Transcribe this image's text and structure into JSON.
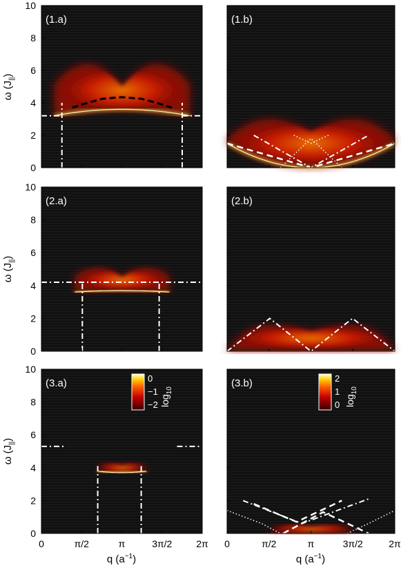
{
  "chart_data": {
    "type": "heatmap",
    "shared_axes": {
      "xlabel": "q (a",
      "xlabel_sup": "−1",
      "xlabel_close": ")",
      "ylabel": "ω (J",
      "ylabel_sub": "||",
      "ylabel_close": ")",
      "xlim": [
        0,
        6.2832
      ],
      "ylim": [
        0,
        10
      ],
      "x_ticks": [
        0,
        1.5708,
        3.1416,
        4.7124,
        6.2832
      ],
      "x_tick_labels": [
        "0",
        "π/2",
        "π",
        "3π/2",
        "2π"
      ],
      "y_ticks": [
        0,
        2,
        4,
        6,
        8,
        10
      ],
      "y_tick_labels": [
        "0",
        "2",
        "4",
        "6",
        "8",
        "10"
      ]
    },
    "panels": [
      {
        "label": "(1.a)",
        "continuum": {
          "q_min": 0.5,
          "q_max": 5.8,
          "edge_low": 3.2,
          "center_low": 3.6,
          "upper_center": 5.0,
          "upper_mid": 6.4,
          "upper_edge": 5.2
        },
        "overlays": [
          {
            "style": "dashed-black",
            "x": [
              1.2,
              1.8,
              2.4,
              3.1416,
              3.9,
              4.5,
              5.1
            ],
            "y": [
              3.7,
              4.0,
              4.25,
              4.35,
              4.25,
              4.0,
              3.7
            ]
          },
          {
            "style": "dashdot-white",
            "x": [
              0,
              0.8
            ],
            "y": [
              3.2,
              3.2
            ]
          },
          {
            "style": "dashdot-white",
            "x": [
              5.5,
              6.2832
            ],
            "y": [
              3.2,
              3.2
            ]
          },
          {
            "style": "dashdot-white",
            "x": [
              0.8,
              0.8
            ],
            "y": [
              0,
              4.0
            ]
          },
          {
            "style": "dashdot-white",
            "x": [
              5.5,
              5.5
            ],
            "y": [
              0,
              4.0
            ]
          }
        ]
      },
      {
        "label": "(1.b)",
        "continuum": {
          "q_min": 0,
          "q_max": 6.2832,
          "edge_low": 1.5,
          "center_low": 0,
          "upper_center": 2.2,
          "upper_mid": 3.0,
          "upper_edge": 1.8
        },
        "overlays": [
          {
            "style": "dashed-white",
            "x": [
              0,
              3.1416,
              6.2832
            ],
            "y": [
              1.5,
              0,
              1.5
            ]
          },
          {
            "style": "dashdot-white",
            "x": [
              1.0,
              3.1416,
              5.3
            ],
            "y": [
              2.0,
              0,
              2.0
            ]
          },
          {
            "style": "dotted-white",
            "x": [
              2.0,
              3.1416,
              4.3
            ],
            "y": [
              0,
              1.8,
              0
            ]
          },
          {
            "style": "dotted-white",
            "x": [
              2.5,
              3.1416,
              3.8
            ],
            "y": [
              2.0,
              1.5,
              2.0
            ]
          }
        ]
      },
      {
        "label": "(2.a)",
        "continuum": {
          "q_min": 1.3,
          "q_max": 5.0,
          "edge_low": 3.6,
          "center_low": 3.7,
          "upper_center": 4.5,
          "upper_mid": 5.1,
          "upper_edge": 4.6
        },
        "overlays": [
          {
            "style": "dashdot-white",
            "x": [
              0,
              6.2832
            ],
            "y": [
              4.2,
              4.2
            ]
          },
          {
            "style": "dashdot-white",
            "x": [
              1.6,
              1.6
            ],
            "y": [
              0,
              4.2
            ]
          },
          {
            "style": "dashdot-white",
            "x": [
              4.6,
              4.6
            ],
            "y": [
              0,
              4.2
            ]
          }
        ]
      },
      {
        "label": "(2.b)",
        "continuum": {
          "q_min": 0,
          "q_max": 6.2832,
          "edge_low": 0,
          "center_low": 0,
          "upper_center": 1.2,
          "upper_mid": 1.6,
          "upper_edge": 0.1
        },
        "overlays": [
          {
            "style": "dashdot-white",
            "x": [
              0,
              1.6,
              3.1416,
              4.7,
              6.2832
            ],
            "y": [
              0,
              2.0,
              0,
              2.0,
              0
            ]
          }
        ]
      },
      {
        "label": "(3.a)",
        "colorbar": {
          "scale_label": "log",
          "scale_sub": "10",
          "tick_labels": [
            "0",
            "−1",
            "−2"
          ],
          "tick_values": [
            0,
            -1,
            -2
          ]
        },
        "continuum": {
          "q_min": 2.2,
          "q_max": 4.1,
          "edge_low": 3.8,
          "center_low": 3.7,
          "upper_center": 4.1,
          "upper_mid": 4.3,
          "upper_edge": 4.0
        },
        "overlays": [
          {
            "style": "dashdot-white",
            "x": [
              0,
              0.9
            ],
            "y": [
              5.3,
              5.3
            ]
          },
          {
            "style": "dashdot-white",
            "x": [
              5.3,
              6.2832
            ],
            "y": [
              5.3,
              5.3
            ]
          },
          {
            "style": "dashdot-white",
            "x": [
              2.2,
              2.2
            ],
            "y": [
              0,
              4.1
            ]
          },
          {
            "style": "dashdot-white",
            "x": [
              3.9,
              3.9
            ],
            "y": [
              0,
              4.1
            ]
          }
        ]
      },
      {
        "label": "(3.b)",
        "colorbar": {
          "scale_label": "log",
          "scale_sub": "10",
          "tick_labels": [
            "2",
            "1",
            "0"
          ],
          "tick_values": [
            2,
            1,
            0
          ]
        },
        "continuum": {
          "q_min": 1.5,
          "q_max": 4.8,
          "edge_low": 0,
          "center_low": 0,
          "upper_center": 0.4,
          "upper_mid": 0.55,
          "upper_edge": 0
        },
        "overlays": [
          {
            "style": "dashed-white",
            "x": [
              1.0,
              2.6,
              4.3
            ],
            "y": [
              1.8,
              0.7,
              2.0
            ]
          },
          {
            "style": "dashed-white",
            "x": [
              2.1,
              3.6,
              5.3
            ],
            "y": [
              0,
              1.3,
              0
            ]
          },
          {
            "style": "dashdot-white",
            "x": [
              0.6,
              2.8,
              5.3
            ],
            "y": [
              2.0,
              0.6,
              2.1
            ]
          },
          {
            "style": "dotted-white",
            "x": [
              0,
              1.3,
              2.0
            ],
            "y": [
              1.4,
              0.6,
              0
            ]
          },
          {
            "style": "dotted-white",
            "x": [
              4.5,
              5.3,
              6.2832
            ],
            "y": [
              0,
              0.6,
              1.4
            ]
          }
        ]
      }
    ]
  }
}
